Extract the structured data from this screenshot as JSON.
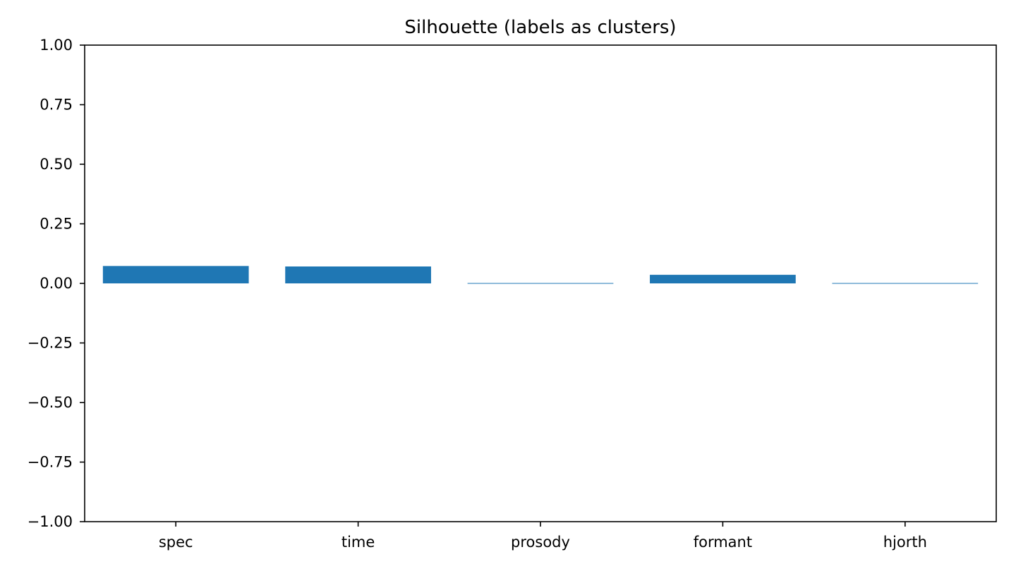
{
  "chart_data": {
    "type": "bar",
    "title": "Silhouette (labels as clusters)",
    "xlabel": "",
    "ylabel": "",
    "categories": [
      "spec",
      "time",
      "prosody",
      "formant",
      "hjorth"
    ],
    "values": [
      0.073,
      0.071,
      0.002,
      0.036,
      0.002
    ],
    "ylim": [
      -1.0,
      1.0
    ],
    "yticks": [
      -1.0,
      -0.75,
      -0.5,
      -0.25,
      0.0,
      0.25,
      0.5,
      0.75,
      1.0
    ],
    "ytick_labels": [
      "−1.00",
      "−0.75",
      "−0.50",
      "−0.25",
      "0.00",
      "0.25",
      "0.50",
      "0.75",
      "1.00"
    ],
    "bar_color": "#1f77b4",
    "grid": false,
    "legend": "none"
  }
}
